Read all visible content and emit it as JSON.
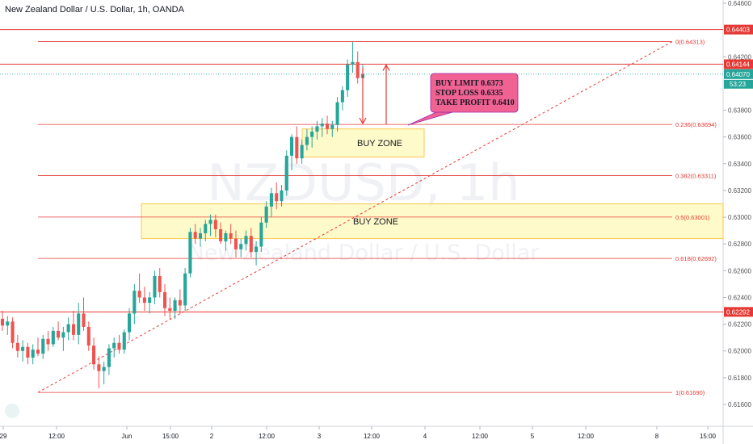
{
  "header": {
    "title": "New Zealand Dollar / U.S. Dollar, 1h, OANDA"
  },
  "watermark": {
    "symbol": "NZDUSD, 1h",
    "name": "New Zealand Dollar / U.S. Dollar"
  },
  "colors": {
    "up": "#26a69a",
    "down": "#ef5350",
    "fib": "#e53935",
    "zone_fill": "#fff59d",
    "zone_stroke": "#f9c74f",
    "callout": "#f06292",
    "current": "#26a69a"
  },
  "chart_data": {
    "type": "candlestick",
    "ylim": [
      0.616,
      0.646
    ],
    "x_ticks": [
      "29",
      "12:00",
      "Jun",
      "15:00",
      "2",
      "12:00",
      "3",
      "12:00",
      "4",
      "12:00",
      "5",
      "12:00",
      "8",
      "15:00"
    ],
    "y_ticks": [
      "0.64600",
      "0.64200",
      "0.63800",
      "0.63600",
      "0.63400",
      "0.63200",
      "0.63000",
      "0.62800",
      "0.62600",
      "0.62400",
      "0.62200",
      "0.62000",
      "0.61800",
      "0.61600"
    ],
    "fib_levels": [
      {
        "label": "0(0.64313)",
        "value": 0.64313
      },
      {
        "label": "0.236(0.63694)",
        "value": 0.63694
      },
      {
        "label": "0.382(0.63311)",
        "value": 0.63311
      },
      {
        "label": "0.5(0.63001)",
        "value": 0.63001
      },
      {
        "label": "0.618(0.62692)",
        "value": 0.62692
      },
      {
        "label": "1(0.61690)",
        "value": 0.6169
      }
    ],
    "horizontal_lines": [
      {
        "label": "0.64403",
        "value": 0.64403
      },
      {
        "label": "0.64144",
        "value": 0.64144
      },
      {
        "label": "0.62292",
        "value": 0.62292
      }
    ],
    "current_price": {
      "label": "0.64070",
      "value": 0.6407,
      "countdown": "53:23"
    },
    "zones": [
      {
        "label": "BUY ZONE",
        "top": 0.6366,
        "bottom": 0.6345
      },
      {
        "label": "BUY ZONE",
        "top": 0.631,
        "bottom": 0.6284
      }
    ],
    "callout": {
      "lines": [
        "BUY LIMIT 0.6373",
        "STOP LOSS 0.6335",
        "TAKE PROFIT 0.6410"
      ]
    },
    "candles": [
      [
        0.6224,
        0.623,
        0.6215,
        0.6219
      ],
      [
        0.6219,
        0.6226,
        0.6212,
        0.6222
      ],
      [
        0.6222,
        0.6225,
        0.6202,
        0.6206
      ],
      [
        0.6206,
        0.6212,
        0.6195,
        0.62
      ],
      [
        0.62,
        0.6208,
        0.6192,
        0.6203
      ],
      [
        0.6203,
        0.6206,
        0.619,
        0.6195
      ],
      [
        0.6195,
        0.6205,
        0.619,
        0.6201
      ],
      [
        0.6201,
        0.621,
        0.6196,
        0.6198
      ],
      [
        0.6198,
        0.6212,
        0.6194,
        0.6209
      ],
      [
        0.6209,
        0.6215,
        0.62,
        0.6205
      ],
      [
        0.6205,
        0.6218,
        0.6203,
        0.6215
      ],
      [
        0.6215,
        0.6222,
        0.6208,
        0.621
      ],
      [
        0.621,
        0.6218,
        0.62,
        0.6214
      ],
      [
        0.6214,
        0.6225,
        0.6208,
        0.622
      ],
      [
        0.622,
        0.623,
        0.6208,
        0.6212
      ],
      [
        0.6212,
        0.6236,
        0.6205,
        0.6228
      ],
      [
        0.6228,
        0.624,
        0.6215,
        0.6218
      ],
      [
        0.6218,
        0.6222,
        0.62,
        0.6204
      ],
      [
        0.6204,
        0.621,
        0.6186,
        0.619
      ],
      [
        0.619,
        0.6196,
        0.6172,
        0.6185
      ],
      [
        0.6185,
        0.6192,
        0.6175,
        0.6188
      ],
      [
        0.6188,
        0.6205,
        0.6182,
        0.6202
      ],
      [
        0.6202,
        0.621,
        0.6195,
        0.6206
      ],
      [
        0.6206,
        0.6212,
        0.6198,
        0.6201
      ],
      [
        0.6201,
        0.6216,
        0.6198,
        0.6214
      ],
      [
        0.6214,
        0.6232,
        0.6208,
        0.6228
      ],
      [
        0.6228,
        0.625,
        0.622,
        0.6245
      ],
      [
        0.6245,
        0.6258,
        0.6236,
        0.624
      ],
      [
        0.624,
        0.6248,
        0.623,
        0.6236
      ],
      [
        0.6236,
        0.6244,
        0.6228,
        0.624
      ],
      [
        0.624,
        0.626,
        0.6235,
        0.6256
      ],
      [
        0.6256,
        0.6262,
        0.624,
        0.6244
      ],
      [
        0.6244,
        0.625,
        0.6226,
        0.6232
      ],
      [
        0.6232,
        0.624,
        0.6224,
        0.623
      ],
      [
        0.623,
        0.624,
        0.6224,
        0.6238
      ],
      [
        0.6238,
        0.6246,
        0.6228,
        0.6234
      ],
      [
        0.6234,
        0.6262,
        0.623,
        0.6258
      ],
      [
        0.6258,
        0.6292,
        0.6255,
        0.6289
      ],
      [
        0.6289,
        0.6295,
        0.628,
        0.6284
      ],
      [
        0.6284,
        0.6292,
        0.6278,
        0.6288
      ],
      [
        0.6288,
        0.6298,
        0.6282,
        0.6295
      ],
      [
        0.6295,
        0.6302,
        0.6286,
        0.6298
      ],
      [
        0.6298,
        0.6302,
        0.6285,
        0.6291
      ],
      [
        0.6291,
        0.6296,
        0.628,
        0.6282
      ],
      [
        0.6282,
        0.629,
        0.6275,
        0.6288
      ],
      [
        0.6288,
        0.6295,
        0.628,
        0.6284
      ],
      [
        0.6284,
        0.629,
        0.627,
        0.6276
      ],
      [
        0.6276,
        0.6284,
        0.627,
        0.628
      ],
      [
        0.628,
        0.629,
        0.6275,
        0.6286
      ],
      [
        0.6286,
        0.6292,
        0.627,
        0.6274
      ],
      [
        0.6274,
        0.6282,
        0.6264,
        0.6278
      ],
      [
        0.6278,
        0.63,
        0.6274,
        0.6296
      ],
      [
        0.6296,
        0.6312,
        0.6292,
        0.6308
      ],
      [
        0.6308,
        0.6322,
        0.63,
        0.6318
      ],
      [
        0.6318,
        0.6326,
        0.6306,
        0.6312
      ],
      [
        0.6312,
        0.6324,
        0.6308,
        0.632
      ],
      [
        0.632,
        0.635,
        0.6316,
        0.6346
      ],
      [
        0.6346,
        0.6362,
        0.6335,
        0.636
      ],
      [
        0.636,
        0.6368,
        0.634,
        0.6344
      ],
      [
        0.6344,
        0.6358,
        0.634,
        0.6354
      ],
      [
        0.6354,
        0.6366,
        0.635,
        0.636
      ],
      [
        0.636,
        0.6368,
        0.6352,
        0.6364
      ],
      [
        0.6364,
        0.6372,
        0.6358,
        0.6368
      ],
      [
        0.6368,
        0.6374,
        0.636,
        0.637
      ],
      [
        0.637,
        0.6376,
        0.6362,
        0.6366
      ],
      [
        0.6366,
        0.6372,
        0.636,
        0.6369
      ],
      [
        0.6369,
        0.639,
        0.6364,
        0.6386
      ],
      [
        0.6386,
        0.6398,
        0.638,
        0.6395
      ],
      [
        0.6395,
        0.6418,
        0.639,
        0.6414
      ],
      [
        0.6414,
        0.6431,
        0.6408,
        0.6416
      ],
      [
        0.6416,
        0.6424,
        0.64,
        0.6404
      ],
      [
        0.6404,
        0.6414,
        0.6398,
        0.6407
      ]
    ]
  }
}
